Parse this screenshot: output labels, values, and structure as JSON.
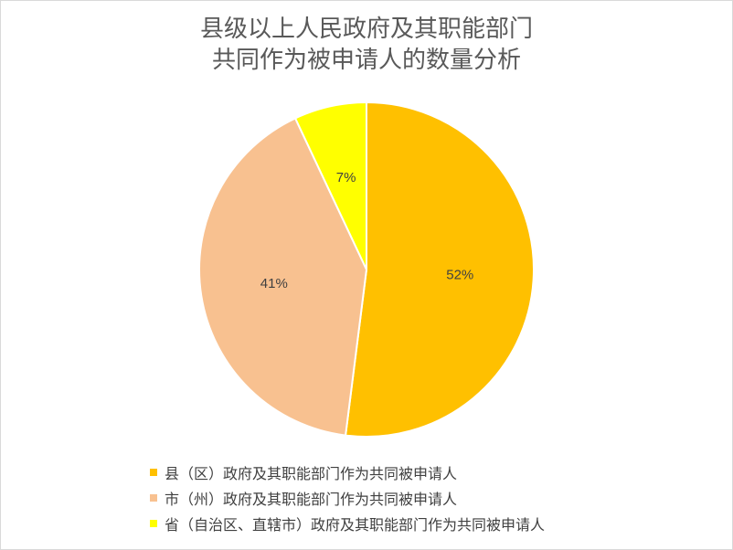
{
  "chart_data": {
    "type": "pie",
    "title": [
      "县级以上人民政府及其职能部门",
      "共同作为被申请人的数量分析"
    ],
    "slices": [
      {
        "label": "县（区）政府及其职能部门作为共同被申请人",
        "value": 52,
        "display": "52%",
        "color": "#FFC000"
      },
      {
        "label": "市（州）政府及其职能部门作为共同被申请人",
        "value": 41,
        "display": "41%",
        "color": "#F8C190"
      },
      {
        "label": "省（自治区、直辖市）政府及其职能部门作为共同被申请人",
        "value": 7,
        "display": "7%",
        "color": "#FFFF00"
      }
    ],
    "legend_position": "bottom",
    "data_label_color": "#404040"
  }
}
